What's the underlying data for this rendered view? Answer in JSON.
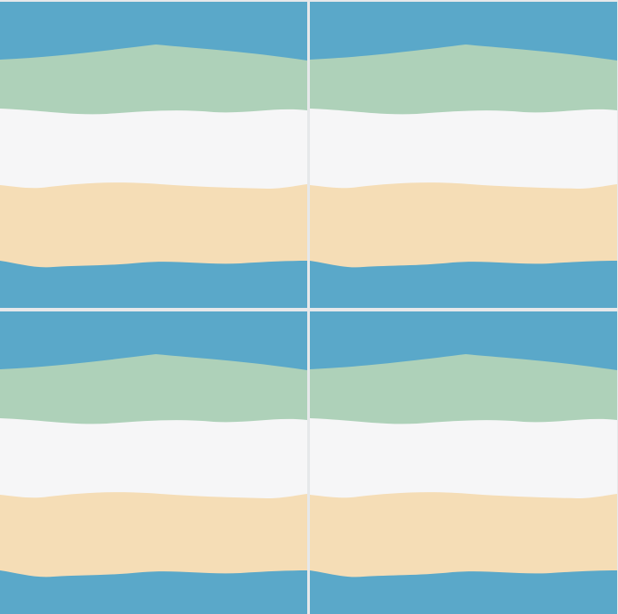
{
  "pattern": {
    "colors": {
      "blue": "#5aa8c9",
      "green": "#aed1b9",
      "white": "#f6f6f7",
      "sand": "#f5ddb6",
      "divider": "#e6e8ea"
    },
    "band_order": [
      "blue",
      "green",
      "white",
      "sand",
      "blue"
    ],
    "tile_count": 4
  }
}
